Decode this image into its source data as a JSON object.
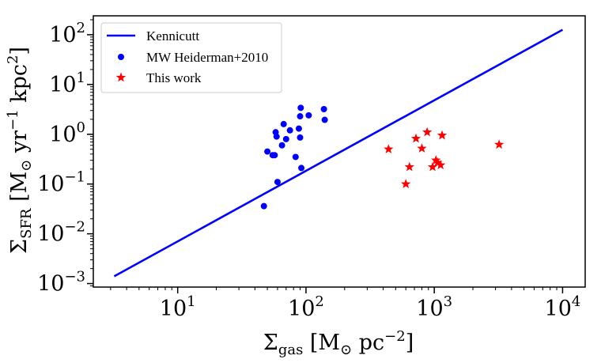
{
  "chart_data": {
    "type": "scatter",
    "xscale": "log",
    "yscale": "log",
    "xlim": [
      2.2,
      15000
    ],
    "ylim": [
      0.00085,
      240
    ],
    "xlabel": "Σgas [M⊙ pc−2]",
    "ylabel": "ΣSFR [M⊙ yr−1 kpc2]",
    "x_ticks": [
      {
        "value": 10,
        "label": "10",
        "exp": "1"
      },
      {
        "value": 100,
        "label": "10",
        "exp": "2"
      },
      {
        "value": 1000,
        "label": "10",
        "exp": "3"
      },
      {
        "value": 10000,
        "label": "10",
        "exp": "4"
      }
    ],
    "y_ticks": [
      {
        "value": 0.001,
        "label": "10",
        "exp": "−3"
      },
      {
        "value": 0.01,
        "label": "10",
        "exp": "−2"
      },
      {
        "value": 0.1,
        "label": "10",
        "exp": "−1"
      },
      {
        "value": 1,
        "label": "10",
        "exp": "0"
      },
      {
        "value": 10,
        "label": "10",
        "exp": "1"
      },
      {
        "value": 100,
        "label": "10",
        "exp": "2"
      }
    ],
    "legend_position": "top-left",
    "series": [
      {
        "name": "Kennicutt",
        "kind": "line",
        "color": "#0000ff",
        "x": [
          3.2,
          10000
        ],
        "y": [
          0.0014,
          126
        ]
      },
      {
        "name": "MW Heiderman+2010",
        "kind": "marker-circle",
        "color": "#0000ff",
        "x": [
          47,
          50,
          55,
          57,
          58,
          59,
          60,
          65,
          67,
          70,
          75,
          83,
          88,
          90,
          90,
          91,
          92,
          105,
          138,
          140
        ],
        "y": [
          0.036,
          0.45,
          0.38,
          0.38,
          1.1,
          0.9,
          0.11,
          0.6,
          1.6,
          0.8,
          1.2,
          0.35,
          1.3,
          0.86,
          2.3,
          3.4,
          0.21,
          2.4,
          3.2,
          1.95
        ]
      },
      {
        "name": "This work",
        "kind": "marker-star",
        "color": "#ff0000",
        "x": [
          440,
          600,
          640,
          720,
          800,
          880,
          970,
          1030,
          1060,
          1120,
          1150,
          3200
        ],
        "y": [
          0.5,
          0.1,
          0.22,
          0.82,
          0.52,
          1.1,
          0.22,
          0.3,
          0.27,
          0.24,
          0.95,
          0.62
        ]
      }
    ]
  }
}
